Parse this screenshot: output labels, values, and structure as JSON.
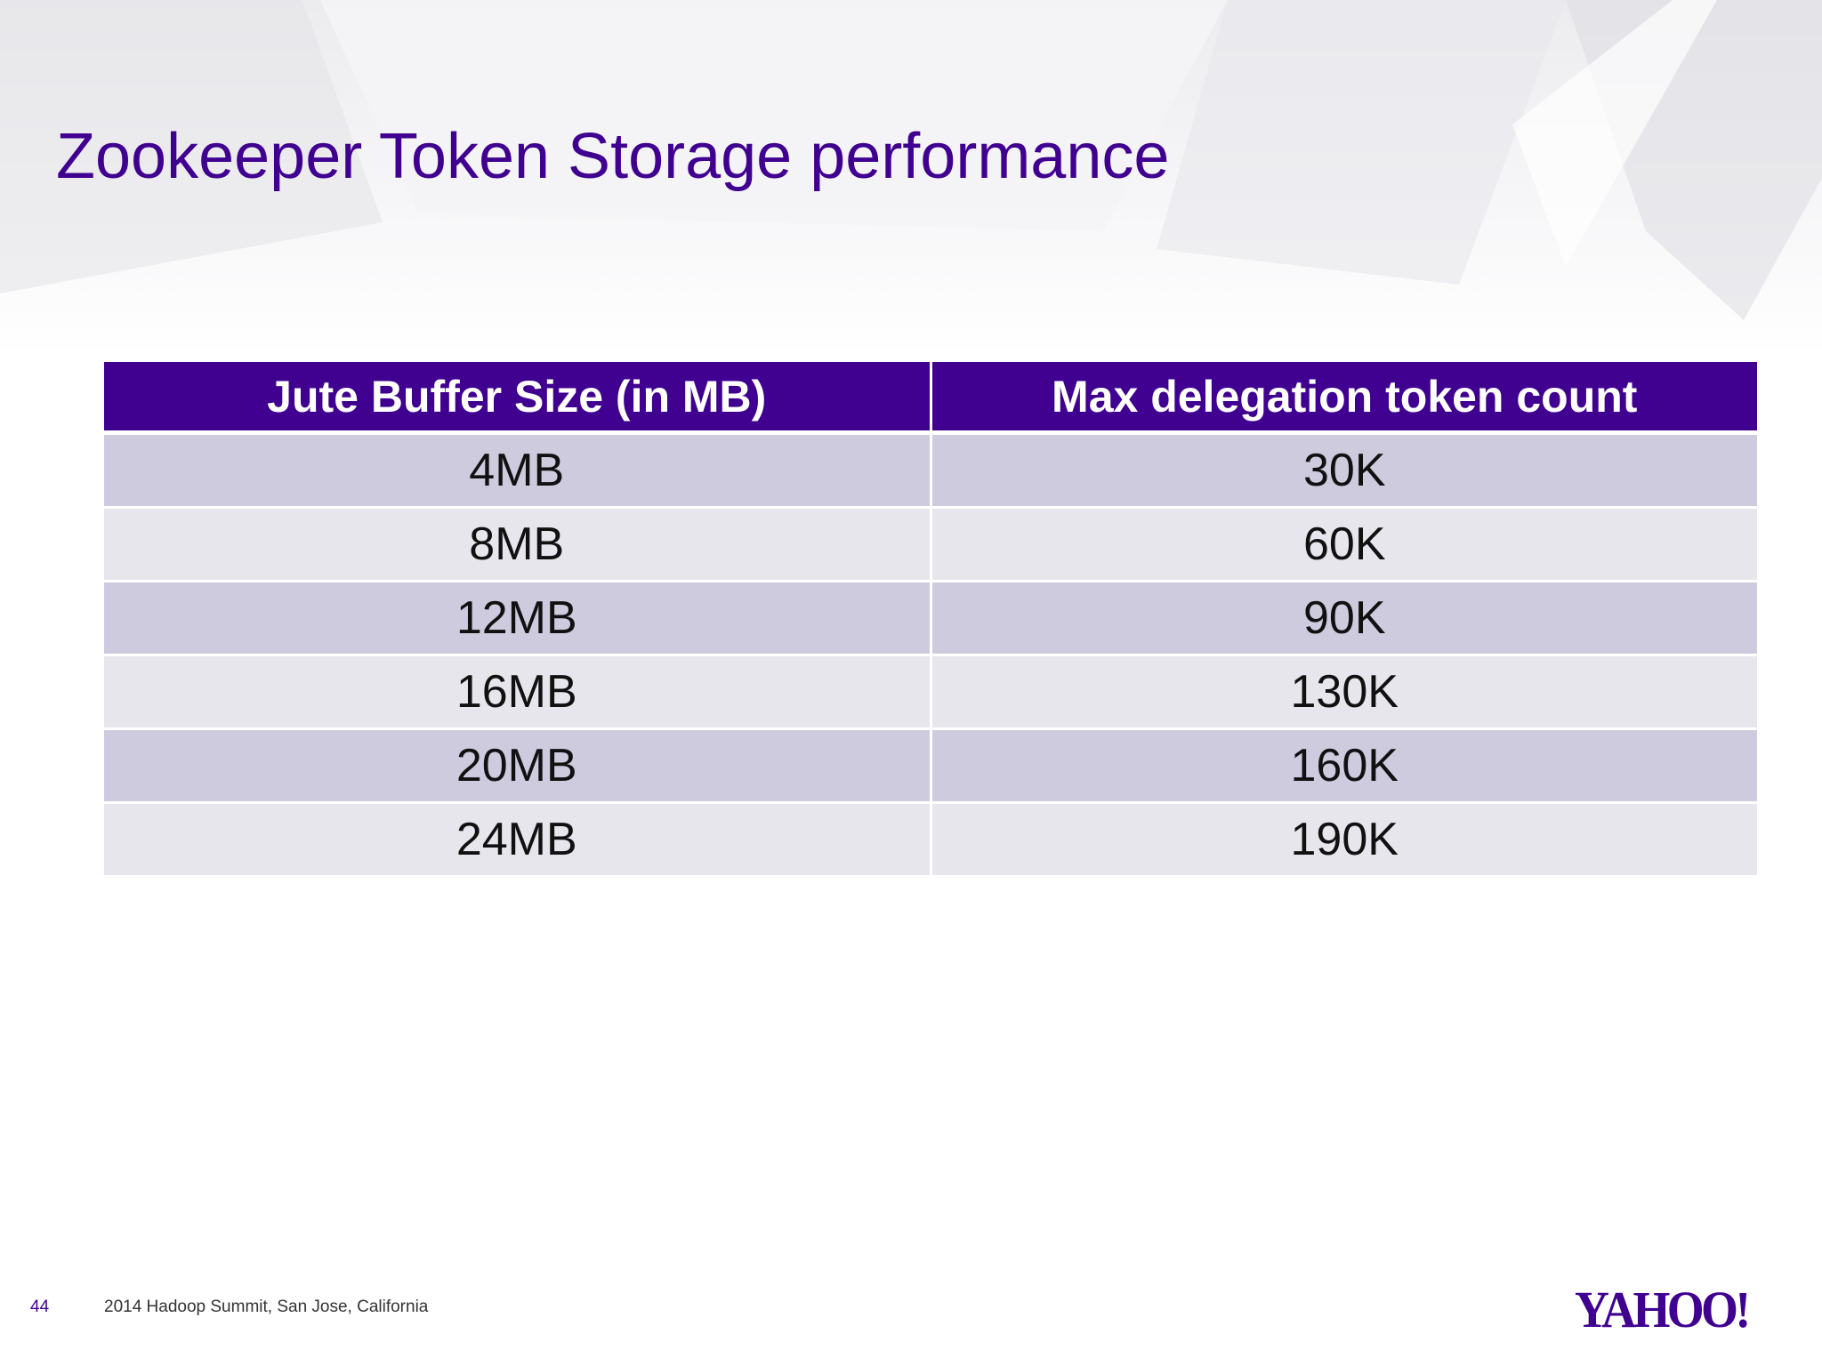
{
  "slide": {
    "title": "Zookeeper Token Storage performance",
    "page_number": "44",
    "footer": "2014 Hadoop Summit, San Jose, California",
    "logo_text": "YAHOO!",
    "accent_color": "#400090"
  },
  "table": {
    "headers": [
      "Jute Buffer Size (in MB)",
      "Max delegation token count"
    ],
    "rows": [
      [
        "4MB",
        "30K"
      ],
      [
        "8MB",
        "60K"
      ],
      [
        "12MB",
        "90K"
      ],
      [
        "16MB",
        "130K"
      ],
      [
        "20MB",
        "160K"
      ],
      [
        "24MB",
        "190K"
      ]
    ]
  }
}
